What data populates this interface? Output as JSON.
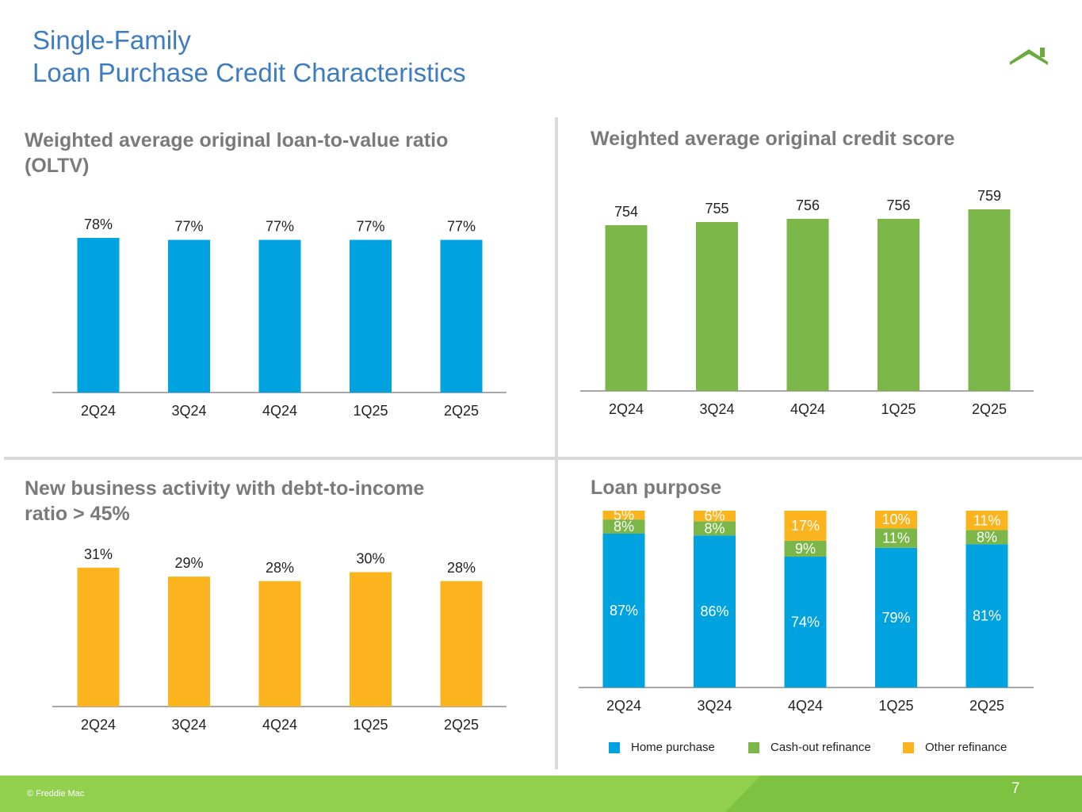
{
  "page": {
    "title_line1": "Single-Family",
    "title_line2": "Loan Purchase Credit Characteristics",
    "copyright": "© Freddie Mac",
    "page_number": "7"
  },
  "colors": {
    "title": "#3d7cc0",
    "blue": "#00a3e0",
    "green": "#7ab648",
    "orange": "#fbb41d",
    "footer": "#92d050"
  },
  "chart_data": [
    {
      "id": "oltv",
      "type": "bar",
      "title": "Weighted average original loan-to-value ratio (OLTV)",
      "title_lines": [
        "Weighted average original loan-to-value ratio",
        "(OLTV)"
      ],
      "categories": [
        "2Q24",
        "3Q24",
        "4Q24",
        "1Q25",
        "2Q25"
      ],
      "values": [
        78,
        77,
        77,
        77,
        77
      ],
      "labels": [
        "78%",
        "77%",
        "77%",
        "77%",
        "77%"
      ],
      "unit": "%",
      "color": "#00a3e0"
    },
    {
      "id": "credit-score",
      "type": "bar",
      "title": "Weighted average original credit score",
      "title_lines": [
        "Weighted average original credit score"
      ],
      "categories": [
        "2Q24",
        "3Q24",
        "4Q24",
        "1Q25",
        "2Q25"
      ],
      "values": [
        754,
        755,
        756,
        756,
        759
      ],
      "labels": [
        "754",
        "755",
        "756",
        "756",
        "759"
      ],
      "color": "#7ab648"
    },
    {
      "id": "dti",
      "type": "bar",
      "title": "New business activity with debt-to-income ratio > 45%",
      "title_lines": [
        "New business activity with debt-to-income",
        "ratio > 45%"
      ],
      "categories": [
        "2Q24",
        "3Q24",
        "4Q24",
        "1Q25",
        "2Q25"
      ],
      "values": [
        31,
        29,
        28,
        30,
        28
      ],
      "labels": [
        "31%",
        "29%",
        "28%",
        "30%",
        "28%"
      ],
      "unit": "%",
      "color": "#fbb41d"
    },
    {
      "id": "loan-purpose",
      "type": "bar",
      "stacked": true,
      "title": "Loan purpose",
      "title_lines": [
        "Loan purpose"
      ],
      "categories": [
        "2Q24",
        "3Q24",
        "4Q24",
        "1Q25",
        "2Q25"
      ],
      "series": [
        {
          "name": "Home purchase",
          "values": [
            87,
            86,
            74,
            79,
            81
          ],
          "labels": [
            "87%",
            "86%",
            "74%",
            "79%",
            "81%"
          ],
          "color": "#00a3e0"
        },
        {
          "name": "Cash-out refinance",
          "values": [
            8,
            8,
            9,
            11,
            8
          ],
          "labels": [
            "8%",
            "8%",
            "9%",
            "11%",
            "8%"
          ],
          "color": "#7ab648"
        },
        {
          "name": "Other refinance",
          "values": [
            5,
            6,
            17,
            10,
            11
          ],
          "labels": [
            "5%",
            "6%",
            "17%",
            "10%",
            "11%"
          ],
          "color": "#fbb41d"
        }
      ],
      "legend_position": "bottom"
    }
  ]
}
